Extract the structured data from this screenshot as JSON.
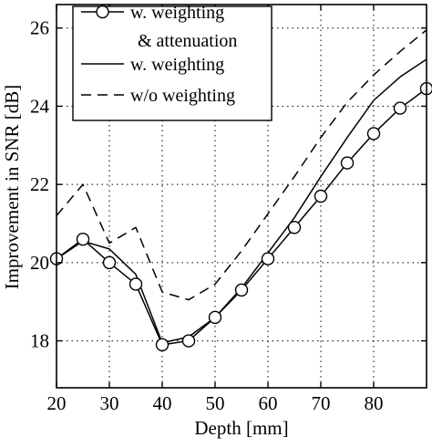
{
  "chart_data": {
    "type": "line",
    "title": "",
    "xlabel": "Depth [mm]",
    "ylabel": "Improvement in SNR [dB]",
    "xlim": [
      20,
      90
    ],
    "ylim": [
      16.8,
      26.6
    ],
    "xticks": [
      20,
      30,
      40,
      50,
      60,
      70,
      80
    ],
    "yticks": [
      18,
      20,
      22,
      24,
      26
    ],
    "grid": true,
    "grid_style": "dotted",
    "legend_position": "top-left",
    "legend_entries": [
      {
        "marker": "circle",
        "line_style": "solid",
        "label_lines": [
          "w. weighting",
          "& attenuation"
        ]
      },
      {
        "marker": "none",
        "line_style": "solid",
        "label_lines": [
          "w. weighting"
        ]
      },
      {
        "marker": "none",
        "line_style": "dashed",
        "label_lines": [
          "w/o weighting"
        ]
      }
    ],
    "series": [
      {
        "line_style": "solid",
        "marker": "circle",
        "x": [
          20,
          25,
          30,
          35,
          40,
          45,
          50,
          55,
          60,
          65,
          70,
          75,
          80,
          85,
          90
        ],
        "y": [
          20.1,
          20.6,
          20.0,
          19.45,
          17.9,
          18.0,
          18.6,
          19.3,
          20.1,
          20.9,
          21.7,
          22.55,
          23.3,
          23.95,
          24.45
        ]
      },
      {
        "line_style": "solid",
        "marker": "none",
        "x": [
          20,
          25,
          30,
          35,
          40,
          45,
          50,
          55,
          60,
          65,
          70,
          75,
          80,
          85,
          90
        ],
        "y": [
          20.1,
          20.55,
          20.35,
          19.7,
          17.95,
          18.1,
          18.6,
          19.35,
          20.25,
          21.15,
          22.2,
          23.2,
          24.15,
          24.75,
          25.2
        ]
      },
      {
        "line_style": "dashed",
        "marker": "none",
        "x": [
          20,
          25,
          30,
          35,
          40,
          45,
          50,
          55,
          60,
          65,
          70,
          75,
          80,
          85,
          90
        ],
        "y": [
          21.2,
          22.0,
          20.5,
          20.9,
          19.25,
          19.05,
          19.45,
          20.3,
          21.25,
          22.2,
          23.2,
          24.1,
          24.8,
          25.4,
          25.95
        ]
      }
    ]
  }
}
